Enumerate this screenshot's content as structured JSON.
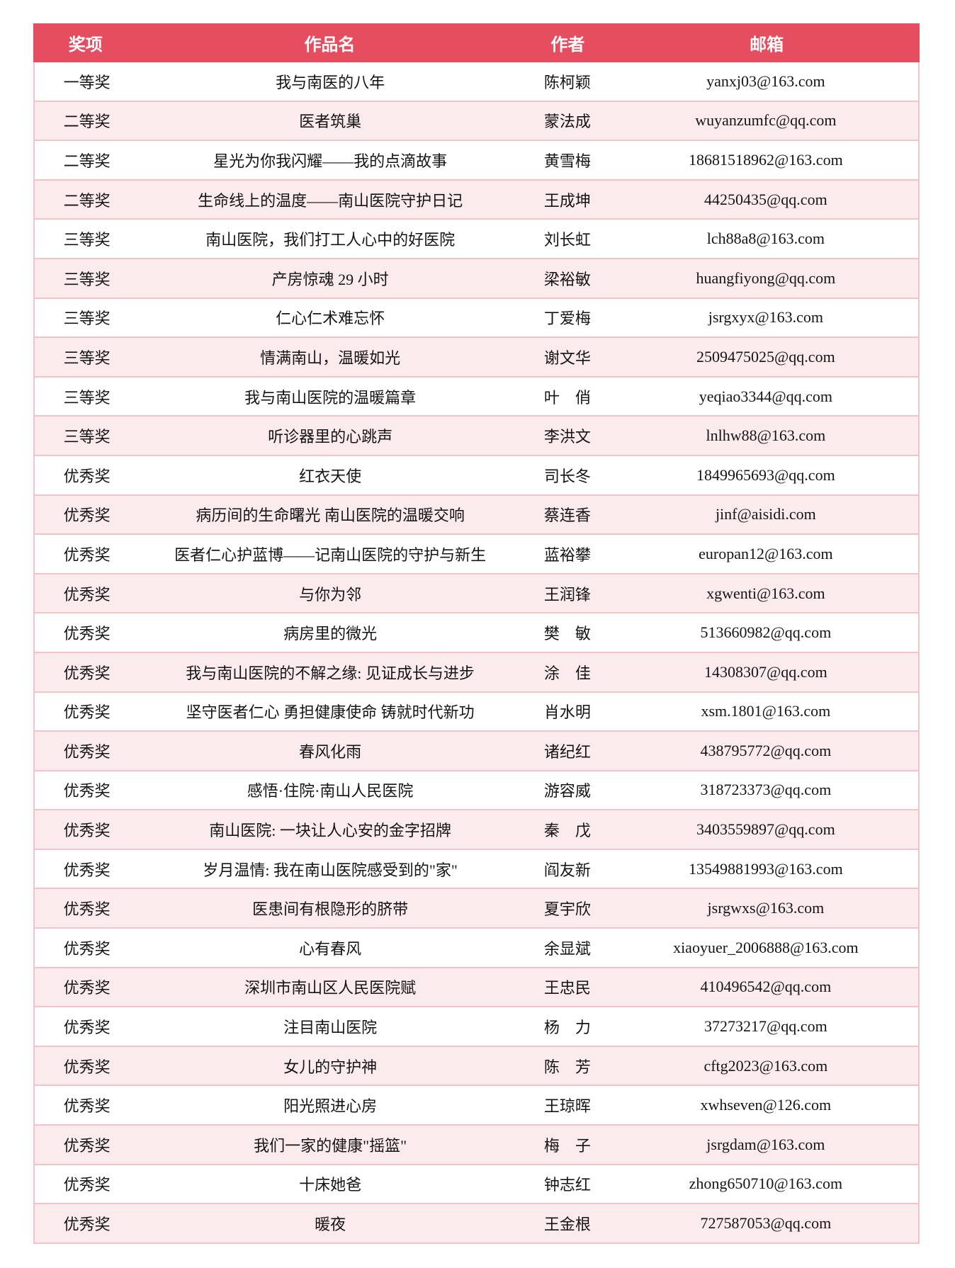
{
  "table": {
    "columns": [
      "奖项",
      "作品名",
      "作者",
      "邮箱"
    ],
    "rows": [
      [
        "一等奖",
        "我与南医的八年",
        "陈柯颖",
        "yanxj03@163.com"
      ],
      [
        "二等奖",
        "医者筑巢",
        "蒙法成",
        "wuyanzumfc@qq.com"
      ],
      [
        "二等奖",
        "星光为你我闪耀——我的点滴故事",
        "黄雪梅",
        "18681518962@163.com"
      ],
      [
        "二等奖",
        "生命线上的温度——南山医院守护日记",
        "王成坤",
        "44250435@qq.com"
      ],
      [
        "三等奖",
        "南山医院，我们打工人心中的好医院",
        "刘长虹",
        "lch88a8@163.com"
      ],
      [
        "三等奖",
        "产房惊魂 29 小时",
        "梁裕敏",
        "huangfiyong@qq.com"
      ],
      [
        "三等奖",
        "仁心仁术难忘怀",
        "丁爱梅",
        "jsrgxyx@163.com"
      ],
      [
        "三等奖",
        "情满南山，温暖如光",
        "谢文华",
        "2509475025@qq.com"
      ],
      [
        "三等奖",
        "我与南山医院的温暖篇章",
        "叶　俏",
        "yeqiao3344@qq.com"
      ],
      [
        "三等奖",
        "听诊器里的心跳声",
        "李洪文",
        "lnlhw88@163.com"
      ],
      [
        "优秀奖",
        "红衣天使",
        "司长冬",
        "1849965693@qq.com"
      ],
      [
        "优秀奖",
        "病历间的生命曙光 南山医院的温暖交响",
        "蔡连香",
        "jinf@aisidi.com"
      ],
      [
        "优秀奖",
        "医者仁心护蓝博——记南山医院的守护与新生",
        "蓝裕攀",
        "europan12@163.com"
      ],
      [
        "优秀奖",
        "与你为邻",
        "王润锋",
        "xgwenti@163.com"
      ],
      [
        "优秀奖",
        "病房里的微光",
        "樊　敏",
        "513660982@qq.com"
      ],
      [
        "优秀奖",
        "我与南山医院的不解之缘: 见证成长与进步",
        "涂　佳",
        "14308307@qq.com"
      ],
      [
        "优秀奖",
        "坚守医者仁心 勇担健康使命 铸就时代新功",
        "肖水明",
        "xsm.1801@163.com"
      ],
      [
        "优秀奖",
        "春风化雨",
        "诸纪红",
        "438795772@qq.com"
      ],
      [
        "优秀奖",
        "感悟·住院·南山人民医院",
        "游容威",
        "318723373@qq.com"
      ],
      [
        "优秀奖",
        "南山医院: 一块让人心安的金字招牌",
        "秦　戊",
        "3403559897@qq.com"
      ],
      [
        "优秀奖",
        "岁月温情: 我在南山医院感受到的\"家\"",
        "阎友新",
        "13549881993@163.com"
      ],
      [
        "优秀奖",
        "医患间有根隐形的脐带",
        "夏宇欣",
        "jsrgwxs@163.com"
      ],
      [
        "优秀奖",
        "心有春风",
        "余显斌",
        "xiaoyuer_2006888@163.com"
      ],
      [
        "优秀奖",
        "深圳市南山区人民医院赋",
        "王忠民",
        "410496542@qq.com"
      ],
      [
        "优秀奖",
        "注目南山医院",
        "杨　力",
        "37273217@qq.com"
      ],
      [
        "优秀奖",
        "女儿的守护神",
        "陈　芳",
        "cftg2023@163.com"
      ],
      [
        "优秀奖",
        "阳光照进心房",
        "王琼晖",
        "xwhseven@126.com"
      ],
      [
        "优秀奖",
        "我们一家的健康\"摇篮\"",
        "梅　子",
        "jsrgdam@163.com"
      ],
      [
        "优秀奖",
        "十床她爸",
        "钟志红",
        "zhong650710@163.com"
      ],
      [
        "优秀奖",
        "暖夜",
        "王金根",
        "727587053@qq.com"
      ]
    ]
  },
  "colors": {
    "header_bg": "#e64d5f",
    "header_text": "#ffffff",
    "row_alt_bg": "#fcebec",
    "row_border": "#f4c3ca",
    "body_text": "#141414"
  }
}
